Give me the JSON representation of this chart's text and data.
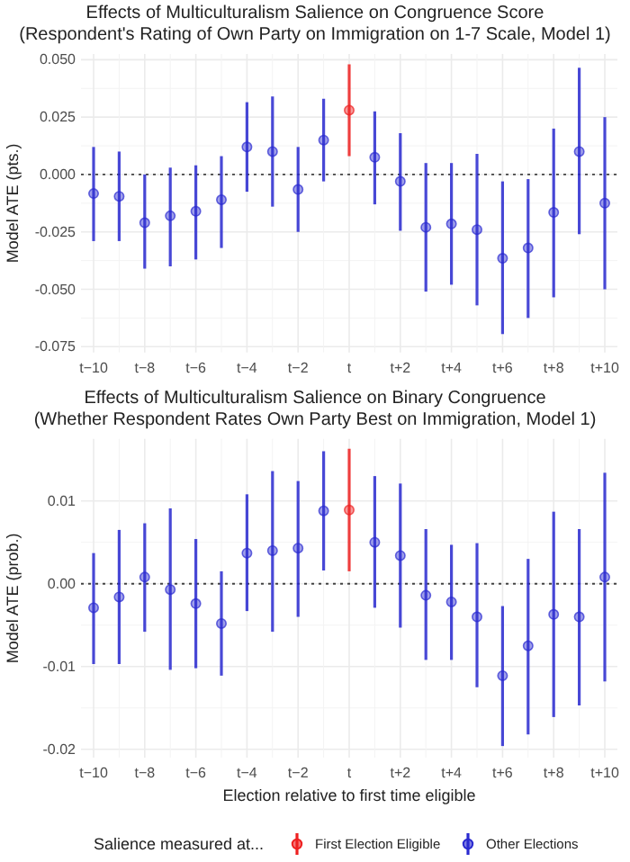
{
  "chart_data": [
    {
      "type": "scatter",
      "title": "Effects of Multiculturalism Salience on Congruence Score",
      "subtitle": "(Respondent's Rating of Own Party on Immigration on 1-7 Scale, Model 1)",
      "ylabel": "Model ATE (pts.)",
      "categories": [
        "t−10",
        null,
        "t−8",
        null,
        "t−6",
        null,
        "t−4",
        null,
        "t−2",
        null,
        "t",
        null,
        "t+2",
        null,
        "t+4",
        null,
        "t+6",
        null,
        "t+8",
        null,
        "t+10"
      ],
      "ylim": [
        -0.0775,
        0.0525
      ],
      "yticks": [
        {
          "value": -0.075,
          "label": "-0.075"
        },
        {
          "value": -0.05,
          "label": "-0.050"
        },
        {
          "value": -0.025,
          "label": "-0.025"
        },
        {
          "value": 0,
          "label": "0.000"
        },
        {
          "value": 0.025,
          "label": "0.025"
        },
        {
          "value": 0.05,
          "label": "0.050"
        }
      ],
      "grid": true,
      "marker": "circle",
      "ref_lines": [
        {
          "axis": "y",
          "value": 0,
          "line_style": "dotted",
          "color": "#444444"
        }
      ],
      "series": [
        {
          "color": "#ee2020",
          "values": [
            null,
            null,
            null,
            null,
            null,
            null,
            null,
            null,
            null,
            null,
            0.028,
            null,
            null,
            null,
            null,
            null,
            null,
            null,
            null,
            null,
            null
          ],
          "errors": [
            null,
            null,
            null,
            null,
            null,
            null,
            null,
            null,
            null,
            null,
            [
              0.008,
              0.048
            ],
            null,
            null,
            null,
            null,
            null,
            null,
            null,
            null,
            null,
            null
          ]
        },
        {
          "color": "#2a2ad0",
          "values": [
            -0.0083,
            -0.0095,
            -0.021,
            -0.018,
            -0.016,
            -0.011,
            0.012,
            0.01,
            -0.0065,
            0.015,
            null,
            0.0075,
            -0.003,
            -0.023,
            -0.0215,
            -0.024,
            -0.0365,
            -0.032,
            -0.0165,
            0.01,
            -0.0125
          ],
          "errors": [
            [
              -0.029,
              0.012
            ],
            [
              -0.029,
              0.01
            ],
            [
              -0.041,
              0
            ],
            [
              -0.04,
              0.003
            ],
            [
              -0.037,
              0.004
            ],
            [
              -0.032,
              0.008
            ],
            [
              -0.0075,
              0.0315
            ],
            [
              -0.014,
              0.034
            ],
            [
              -0.025,
              0.012
            ],
            [
              -0.003,
              0.033
            ],
            null,
            [
              -0.013,
              0.0275
            ],
            [
              -0.0245,
              0.018
            ],
            [
              -0.051,
              0.005
            ],
            [
              -0.048,
              0.005
            ],
            [
              -0.057,
              0.009
            ],
            [
              -0.0695,
              -0.003
            ],
            [
              -0.0625,
              -0.002
            ],
            [
              -0.0535,
              0.02
            ],
            [
              -0.026,
              0.0465
            ],
            [
              -0.05,
              0.025
            ]
          ]
        }
      ]
    },
    {
      "type": "scatter",
      "title": "Effects of Multiculturalism Salience on Binary Congruence",
      "subtitle": "(Whether Respondent Rates Own Party Best on Immigration, Model 1)",
      "ylabel": "Model ATE (prob.)",
      "xlabel": "Election relative to first time eligible",
      "legend_title": "Salience measured at...",
      "legend": "bottom",
      "categories": [
        "t−10",
        null,
        "t−8",
        null,
        "t−6",
        null,
        "t−4",
        null,
        "t−2",
        null,
        "t",
        null,
        "t+2",
        null,
        "t+4",
        null,
        "t+6",
        null,
        "t+8",
        null,
        "t+10"
      ],
      "ylim": [
        -0.021,
        0.0175
      ],
      "yticks": [
        {
          "value": -0.02,
          "label": "-0.02"
        },
        {
          "value": -0.01,
          "label": "-0.01"
        },
        {
          "value": 0,
          "label": "0.00"
        },
        {
          "value": 0.01,
          "label": "0.01"
        }
      ],
      "grid": true,
      "marker": "circle",
      "ref_lines": [
        {
          "axis": "y",
          "value": 0,
          "line_style": "dotted",
          "color": "#444444"
        }
      ],
      "series": [
        {
          "name": "First Election Eligible",
          "color": "#ee2020",
          "values": [
            null,
            null,
            null,
            null,
            null,
            null,
            null,
            null,
            null,
            null,
            0.0089,
            null,
            null,
            null,
            null,
            null,
            null,
            null,
            null,
            null,
            null
          ],
          "errors": [
            null,
            null,
            null,
            null,
            null,
            null,
            null,
            null,
            null,
            null,
            [
              0.0015,
              0.0163
            ],
            null,
            null,
            null,
            null,
            null,
            null,
            null,
            null,
            null,
            null
          ]
        },
        {
          "name": "Other Elections",
          "color": "#2a2ad0",
          "values": [
            -0.0029,
            -0.0016,
            0.0008,
            -0.0007,
            -0.0024,
            -0.0048,
            0.0037,
            0.004,
            0.0043,
            0.0088,
            null,
            0.005,
            0.0034,
            -0.0014,
            -0.0022,
            -0.004,
            -0.0111,
            -0.0075,
            -0.0037,
            -0.004,
            0.0008
          ],
          "errors": [
            [
              -0.0097,
              0.0037
            ],
            [
              -0.0097,
              0.0065
            ],
            [
              -0.0058,
              0.0073
            ],
            [
              -0.0104,
              0.0091
            ],
            [
              -0.0102,
              0.0054
            ],
            [
              -0.0111,
              0.0015
            ],
            [
              -0.0033,
              0.0108
            ],
            [
              -0.0058,
              0.0136
            ],
            [
              -0.004,
              0.0124
            ],
            [
              0.0016,
              0.016
            ],
            null,
            [
              -0.0029,
              0.013
            ],
            [
              -0.0053,
              0.0121
            ],
            [
              -0.0092,
              0.0066
            ],
            [
              -0.0092,
              0.0047
            ],
            [
              -0.0125,
              0.0049
            ],
            [
              -0.0196,
              -0.0027
            ],
            [
              -0.0182,
              0.003
            ],
            [
              -0.0161,
              0.0087
            ],
            [
              -0.0147,
              0.0066
            ],
            [
              -0.0118,
              0.0134
            ]
          ]
        }
      ]
    }
  ]
}
